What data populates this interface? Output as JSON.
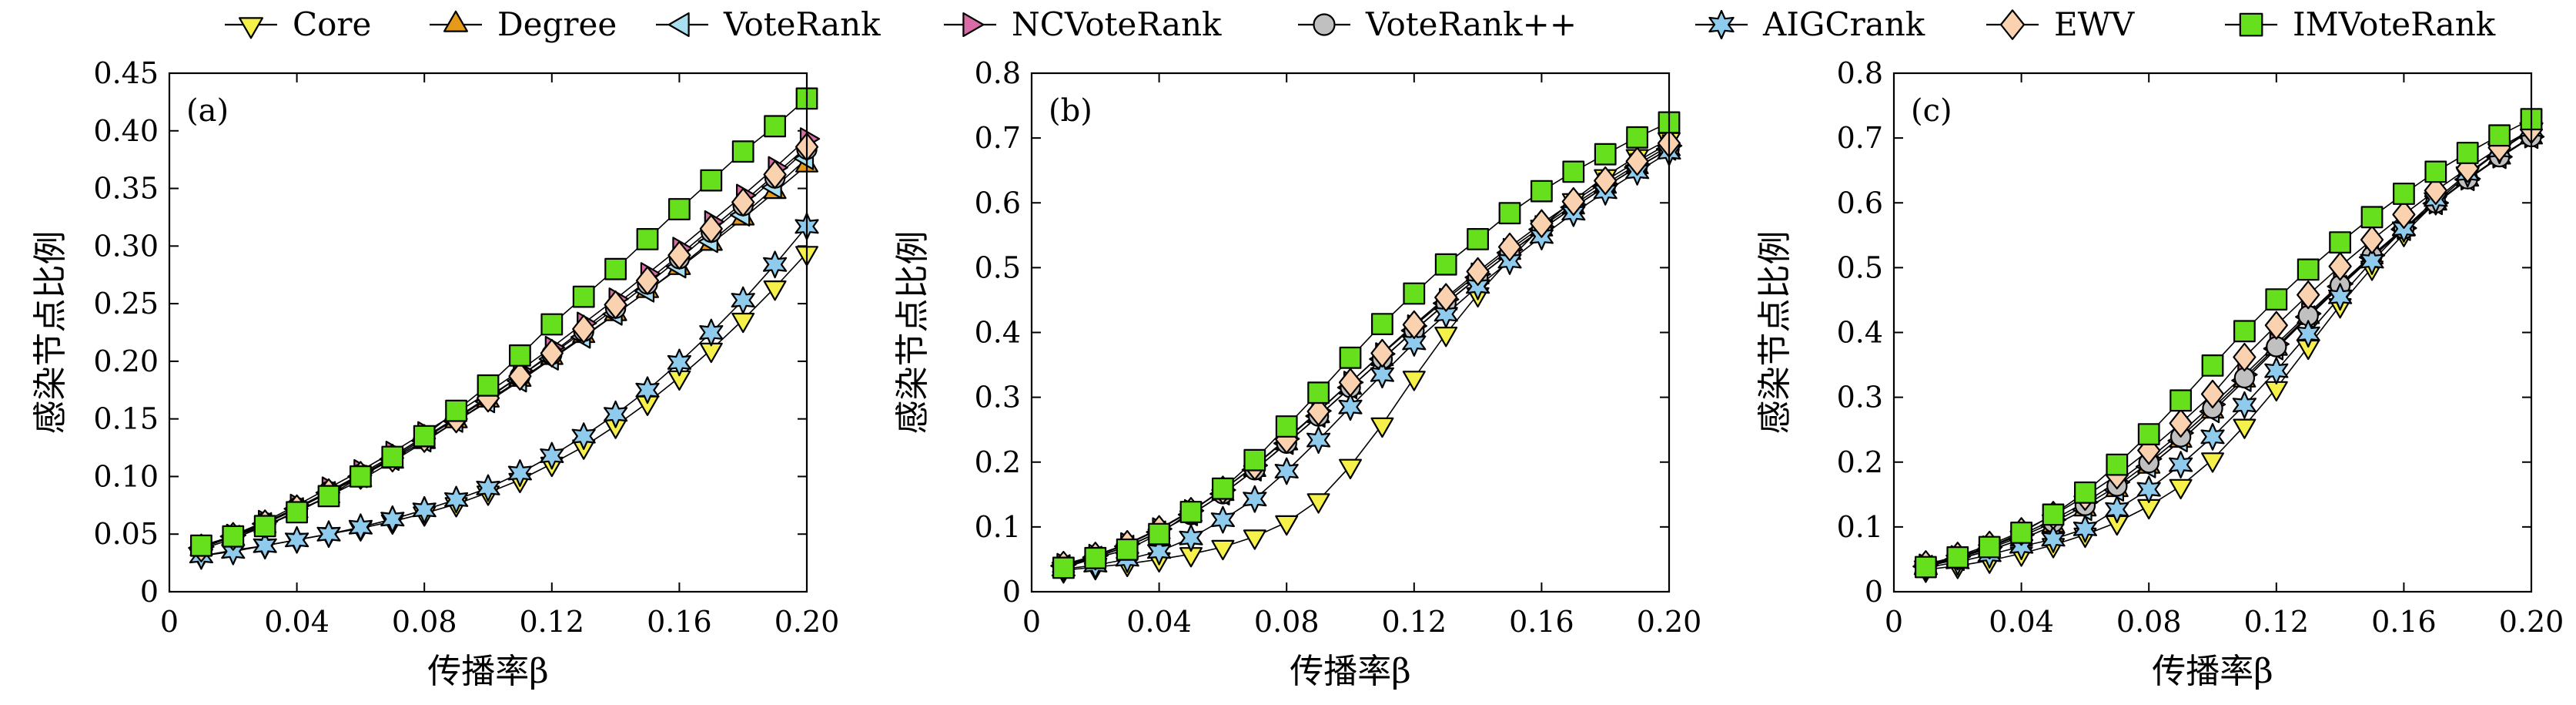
{
  "legend": [
    {
      "name": "Core",
      "marker": "triangle-down",
      "color": "#f5f04a"
    },
    {
      "name": "Degree",
      "marker": "triangle-up",
      "color": "#e59a1b"
    },
    {
      "name": "VoteRank",
      "marker": "triangle-left",
      "color": "#a9dff0"
    },
    {
      "name": "NCVoteRank",
      "marker": "triangle-right",
      "color": "#d96ca6"
    },
    {
      "name": "VoteRank++",
      "marker": "circle",
      "color": "#c0c0c0"
    },
    {
      "name": "AIGCrank",
      "marker": "hexagram",
      "color": "#8ecbec"
    },
    {
      "name": "EWV",
      "marker": "diamond",
      "color": "#fbd2b0"
    },
    {
      "name": "IMVoteRank",
      "marker": "square",
      "color": "#66e01c"
    }
  ],
  "chart_data": [
    {
      "type": "line",
      "panel_label": "(a)",
      "xlabel": "传播率β",
      "ylabel": "感染节点比例",
      "xlim": [
        0,
        0.2
      ],
      "ylim": [
        0,
        0.45
      ],
      "xticks": [
        "0",
        "0.04",
        "0.08",
        "0.12",
        "0.16",
        "0.20"
      ],
      "xtick_values": [
        0,
        0.04,
        0.08,
        0.12,
        0.16,
        0.2
      ],
      "yticks": [
        "0",
        "0.05",
        "0.10",
        "0.15",
        "0.20",
        "0.25",
        "0.30",
        "0.35",
        "0.40",
        "0.45"
      ],
      "ytick_values": [
        0,
        0.05,
        0.1,
        0.15,
        0.2,
        0.25,
        0.3,
        0.35,
        0.4,
        0.45
      ],
      "x": [
        0.01,
        0.02,
        0.03,
        0.04,
        0.05,
        0.06,
        0.07,
        0.08,
        0.09,
        0.1,
        0.11,
        0.12,
        0.13,
        0.14,
        0.15,
        0.16,
        0.17,
        0.18,
        0.19,
        0.2
      ],
      "series": [
        {
          "name": "Core",
          "values": [
            0.031,
            0.036,
            0.04,
            0.045,
            0.05,
            0.055,
            0.061,
            0.068,
            0.076,
            0.086,
            0.097,
            0.111,
            0.126,
            0.144,
            0.164,
            0.186,
            0.21,
            0.236,
            0.264,
            0.294
          ]
        },
        {
          "name": "Degree",
          "values": [
            0.037,
            0.046,
            0.057,
            0.07,
            0.083,
            0.097,
            0.113,
            0.13,
            0.148,
            0.166,
            0.184,
            0.203,
            0.222,
            0.241,
            0.261,
            0.281,
            0.302,
            0.324,
            0.347,
            0.37
          ]
        },
        {
          "name": "VoteRank",
          "values": [
            0.038,
            0.048,
            0.059,
            0.072,
            0.086,
            0.1,
            0.115,
            0.131,
            0.148,
            0.165,
            0.183,
            0.202,
            0.221,
            0.241,
            0.261,
            0.282,
            0.304,
            0.327,
            0.351,
            0.376
          ]
        },
        {
          "name": "NCVoteRank",
          "values": [
            0.039,
            0.049,
            0.061,
            0.075,
            0.09,
            0.105,
            0.121,
            0.138,
            0.155,
            0.173,
            0.192,
            0.212,
            0.233,
            0.254,
            0.276,
            0.298,
            0.321,
            0.344,
            0.368,
            0.393
          ]
        },
        {
          "name": "VoteRank++",
          "values": [
            0.038,
            0.048,
            0.06,
            0.073,
            0.087,
            0.102,
            0.118,
            0.134,
            0.151,
            0.169,
            0.187,
            0.206,
            0.226,
            0.246,
            0.267,
            0.289,
            0.312,
            0.335,
            0.359,
            0.384
          ]
        },
        {
          "name": "AIGCrank",
          "values": [
            0.031,
            0.035,
            0.04,
            0.045,
            0.05,
            0.056,
            0.063,
            0.071,
            0.08,
            0.09,
            0.103,
            0.118,
            0.135,
            0.154,
            0.175,
            0.199,
            0.225,
            0.253,
            0.284,
            0.317
          ]
        },
        {
          "name": "EWV",
          "values": [
            0.038,
            0.048,
            0.059,
            0.072,
            0.086,
            0.101,
            0.116,
            0.133,
            0.15,
            0.168,
            0.187,
            0.207,
            0.228,
            0.249,
            0.27,
            0.292,
            0.315,
            0.338,
            0.362,
            0.386
          ]
        },
        {
          "name": "IMVoteRank",
          "values": [
            0.04,
            0.048,
            0.057,
            0.069,
            0.083,
            0.1,
            0.117,
            0.135,
            0.157,
            0.179,
            0.205,
            0.232,
            0.256,
            0.28,
            0.306,
            0.332,
            0.357,
            0.382,
            0.404,
            0.428
          ]
        }
      ]
    },
    {
      "type": "line",
      "panel_label": "(b)",
      "xlabel": "传播率β",
      "ylabel": "感染节点比例",
      "xlim": [
        0,
        0.2
      ],
      "ylim": [
        0,
        0.8
      ],
      "xticks": [
        "0",
        "0.04",
        "0.08",
        "0.12",
        "0.16",
        "0.20"
      ],
      "xtick_values": [
        0,
        0.04,
        0.08,
        0.12,
        0.16,
        0.2
      ],
      "yticks": [
        "0",
        "0.1",
        "0.2",
        "0.3",
        "0.4",
        "0.5",
        "0.6",
        "0.7",
        "0.8"
      ],
      "ytick_values": [
        0,
        0.1,
        0.2,
        0.3,
        0.4,
        0.5,
        0.6,
        0.7,
        0.8
      ],
      "x": [
        0.01,
        0.02,
        0.03,
        0.04,
        0.05,
        0.06,
        0.07,
        0.08,
        0.09,
        0.1,
        0.11,
        0.12,
        0.13,
        0.14,
        0.15,
        0.16,
        0.17,
        0.18,
        0.19,
        0.2
      ],
      "series": [
        {
          "name": "Core",
          "values": [
            0.033,
            0.038,
            0.043,
            0.05,
            0.058,
            0.069,
            0.085,
            0.107,
            0.141,
            0.194,
            0.258,
            0.33,
            0.398,
            0.459,
            0.513,
            0.563,
            0.604,
            0.641,
            0.672,
            0.698
          ]
        },
        {
          "name": "Degree",
          "values": [
            0.04,
            0.053,
            0.07,
            0.092,
            0.119,
            0.151,
            0.188,
            0.229,
            0.271,
            0.315,
            0.359,
            0.403,
            0.445,
            0.485,
            0.523,
            0.559,
            0.593,
            0.625,
            0.655,
            0.683
          ]
        },
        {
          "name": "VoteRank",
          "values": [
            0.04,
            0.053,
            0.07,
            0.092,
            0.119,
            0.151,
            0.188,
            0.229,
            0.271,
            0.315,
            0.359,
            0.403,
            0.445,
            0.485,
            0.523,
            0.559,
            0.593,
            0.625,
            0.655,
            0.683
          ]
        },
        {
          "name": "NCVoteRank",
          "values": [
            0.042,
            0.056,
            0.074,
            0.097,
            0.125,
            0.157,
            0.195,
            0.236,
            0.279,
            0.323,
            0.367,
            0.41,
            0.451,
            0.49,
            0.528,
            0.563,
            0.597,
            0.629,
            0.659,
            0.688
          ]
        },
        {
          "name": "VoteRank++",
          "values": [
            0.04,
            0.053,
            0.07,
            0.092,
            0.119,
            0.151,
            0.188,
            0.229,
            0.271,
            0.315,
            0.359,
            0.403,
            0.445,
            0.485,
            0.523,
            0.559,
            0.593,
            0.625,
            0.655,
            0.683
          ]
        },
        {
          "name": "AIGCrank",
          "values": [
            0.035,
            0.041,
            0.05,
            0.062,
            0.083,
            0.111,
            0.143,
            0.186,
            0.234,
            0.285,
            0.335,
            0.384,
            0.428,
            0.471,
            0.51,
            0.548,
            0.584,
            0.617,
            0.648,
            0.678
          ]
        },
        {
          "name": "EWV",
          "values": [
            0.041,
            0.055,
            0.073,
            0.096,
            0.124,
            0.157,
            0.194,
            0.235,
            0.278,
            0.323,
            0.368,
            0.412,
            0.454,
            0.494,
            0.532,
            0.568,
            0.602,
            0.634,
            0.664,
            0.692
          ]
        },
        {
          "name": "IMVoteRank",
          "values": [
            0.037,
            0.052,
            0.065,
            0.089,
            0.123,
            0.159,
            0.203,
            0.255,
            0.307,
            0.361,
            0.413,
            0.46,
            0.505,
            0.544,
            0.584,
            0.618,
            0.648,
            0.675,
            0.701,
            0.724
          ]
        }
      ]
    },
    {
      "type": "line",
      "panel_label": "(c)",
      "xlabel": "传播率β",
      "ylabel": "感染节点比例",
      "xlim": [
        0,
        0.2
      ],
      "ylim": [
        0,
        0.8
      ],
      "xticks": [
        "0",
        "0.04",
        "0.08",
        "0.12",
        "0.16",
        "0.20"
      ],
      "xtick_values": [
        0,
        0.04,
        0.08,
        0.12,
        0.16,
        0.2
      ],
      "yticks": [
        "0",
        "0.1",
        "0.2",
        "0.3",
        "0.4",
        "0.5",
        "0.6",
        "0.7",
        "0.8"
      ],
      "ytick_values": [
        0,
        0.1,
        0.2,
        0.3,
        0.4,
        0.5,
        0.6,
        0.7,
        0.8
      ],
      "x": [
        0.01,
        0.02,
        0.03,
        0.04,
        0.05,
        0.06,
        0.07,
        0.08,
        0.09,
        0.1,
        0.11,
        0.12,
        0.13,
        0.14,
        0.15,
        0.16,
        0.17,
        0.18,
        0.19,
        0.2
      ],
      "series": [
        {
          "name": "Core",
          "values": [
            0.034,
            0.04,
            0.048,
            0.059,
            0.072,
            0.088,
            0.107,
            0.132,
            0.163,
            0.204,
            0.256,
            0.314,
            0.378,
            0.442,
            0.5,
            0.552,
            0.601,
            0.643,
            0.68,
            0.712
          ]
        },
        {
          "name": "Degree",
          "values": [
            0.039,
            0.05,
            0.064,
            0.081,
            0.102,
            0.127,
            0.157,
            0.193,
            0.233,
            0.278,
            0.326,
            0.375,
            0.424,
            0.471,
            0.516,
            0.559,
            0.599,
            0.636,
            0.67,
            0.701
          ]
        },
        {
          "name": "VoteRank",
          "values": [
            0.039,
            0.05,
            0.064,
            0.081,
            0.102,
            0.127,
            0.157,
            0.193,
            0.233,
            0.278,
            0.326,
            0.375,
            0.424,
            0.471,
            0.516,
            0.559,
            0.599,
            0.636,
            0.67,
            0.701
          ]
        },
        {
          "name": "NCVoteRank",
          "values": [
            0.041,
            0.054,
            0.069,
            0.088,
            0.111,
            0.138,
            0.169,
            0.205,
            0.245,
            0.289,
            0.335,
            0.382,
            0.429,
            0.475,
            0.519,
            0.561,
            0.6,
            0.637,
            0.671,
            0.702
          ]
        },
        {
          "name": "VoteRank++",
          "values": [
            0.04,
            0.052,
            0.067,
            0.085,
            0.107,
            0.133,
            0.163,
            0.199,
            0.239,
            0.283,
            0.33,
            0.378,
            0.426,
            0.473,
            0.518,
            0.56,
            0.6,
            0.637,
            0.671,
            0.702
          ]
        },
        {
          "name": "AIGCrank",
          "values": [
            0.037,
            0.046,
            0.057,
            0.07,
            0.081,
            0.097,
            0.127,
            0.158,
            0.196,
            0.239,
            0.288,
            0.341,
            0.398,
            0.455,
            0.51,
            0.56,
            0.605,
            0.645,
            0.681,
            0.713
          ]
        },
        {
          "name": "EWV",
          "values": [
            0.042,
            0.055,
            0.072,
            0.093,
            0.118,
            0.147,
            0.18,
            0.218,
            0.26,
            0.305,
            0.362,
            0.411,
            0.458,
            0.502,
            0.543,
            0.582,
            0.619,
            0.653,
            0.685,
            0.713
          ]
        },
        {
          "name": "IMVoteRank",
          "values": [
            0.038,
            0.053,
            0.069,
            0.091,
            0.119,
            0.153,
            0.196,
            0.243,
            0.295,
            0.349,
            0.402,
            0.451,
            0.497,
            0.539,
            0.578,
            0.614,
            0.648,
            0.677,
            0.704,
            0.729
          ]
        }
      ]
    }
  ]
}
